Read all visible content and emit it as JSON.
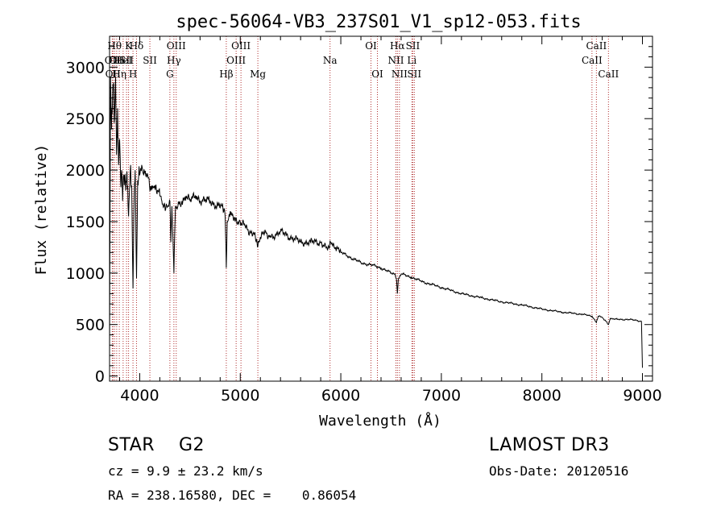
{
  "chart_data": {
    "type": "line",
    "title": "spec-56064-VB3_237S01_V1_sp12-053.fits",
    "xlabel": "Wavelength (Å)",
    "ylabel": "Flux (relative)",
    "xlim": [
      3700,
      9100
    ],
    "ylim": [
      -50,
      3300
    ],
    "xticks": [
      4000,
      5000,
      6000,
      7000,
      8000,
      9000
    ],
    "yticks": [
      0,
      500,
      1000,
      1500,
      2000,
      2500,
      3000
    ],
    "series": [
      {
        "name": "spectrum",
        "x": [
          3700,
          3710,
          3720,
          3730,
          3740,
          3750,
          3760,
          3770,
          3780,
          3790,
          3800,
          3810,
          3820,
          3830,
          3840,
          3850,
          3860,
          3870,
          3880,
          3889,
          3900,
          3910,
          3920,
          3933,
          3945,
          3955,
          3968,
          3980,
          3990,
          4000,
          4020,
          4040,
          4060,
          4080,
          4101,
          4120,
          4150,
          4180,
          4200,
          4220,
          4250,
          4280,
          4300,
          4310,
          4320,
          4340,
          4355,
          4380,
          4420,
          4460,
          4500,
          4560,
          4620,
          4700,
          4780,
          4820,
          4850,
          4861,
          4870,
          4900,
          4950,
          5000,
          5050,
          5100,
          5150,
          5172,
          5183,
          5200,
          5250,
          5300,
          5400,
          5500,
          5600,
          5700,
          5800,
          5889,
          5896,
          5950,
          6000,
          6100,
          6200,
          6300,
          6400,
          6500,
          6540,
          6555,
          6563,
          6572,
          6600,
          6700,
          6800,
          7000,
          7200,
          7400,
          7600,
          7800,
          8000,
          8200,
          8400,
          8500,
          8542,
          8560,
          8600,
          8662,
          8680,
          8750,
          8850,
          8950,
          8990,
          9000
        ],
        "values": [
          200,
          2900,
          2400,
          2700,
          2850,
          2500,
          2900,
          2150,
          2600,
          2050,
          2300,
          1900,
          2000,
          1700,
          1950,
          1950,
          1800,
          1950,
          1850,
          1550,
          1850,
          2050,
          1850,
          850,
          1750,
          2000,
          950,
          1900,
          1950,
          1950,
          2050,
          1950,
          1950,
          1950,
          1800,
          1850,
          1850,
          1800,
          1750,
          1700,
          1650,
          1650,
          1700,
          1300,
          1650,
          1000,
          1650,
          1650,
          1700,
          1750,
          1700,
          1750,
          1700,
          1700,
          1650,
          1650,
          1550,
          1050,
          1500,
          1600,
          1500,
          1500,
          1450,
          1400,
          1350,
          1250,
          1300,
          1350,
          1400,
          1350,
          1400,
          1350,
          1300,
          1300,
          1300,
          1250,
          1300,
          1250,
          1200,
          1150,
          1100,
          1080,
          1050,
          1000,
          990,
          930,
          800,
          940,
          990,
          960,
          920,
          860,
          800,
          760,
          720,
          690,
          650,
          620,
          600,
          580,
          520,
          580,
          570,
          500,
          560,
          550,
          550,
          540,
          530,
          80
        ]
      }
    ],
    "lines": [
      {
        "x": 3727,
        "row": 2,
        "label": "OII"
      },
      {
        "x": 3734,
        "row": 3,
        "label": "OII"
      },
      {
        "x": 3750,
        "row": 1,
        "label": "Hθ"
      },
      {
        "x": 3771,
        "row": 2,
        "label": "OII"
      },
      {
        "x": 3797,
        "row": 3,
        "label": "Hη"
      },
      {
        "x": 3835,
        "row": 2,
        "label": "HeI"
      },
      {
        "x": 3869,
        "row": 2,
        "label": "SII"
      },
      {
        "x": 3889,
        "row": 1,
        "label": "K"
      },
      {
        "x": 3933,
        "row": 3,
        "label": "H"
      },
      {
        "x": 3968,
        "row": 1,
        "label": "Hδ"
      },
      {
        "x": 4101,
        "row": 2,
        "label": "SII"
      },
      {
        "x": 4300,
        "row": 3,
        "label": "G"
      },
      {
        "x": 4340,
        "row": 2,
        "label": "Hγ"
      },
      {
        "x": 4363,
        "row": 1,
        "label": "OIII"
      },
      {
        "x": 4861,
        "row": 3,
        "label": "Hβ"
      },
      {
        "x": 4959,
        "row": 2,
        "label": "OIII"
      },
      {
        "x": 5007,
        "row": 1,
        "label": "OIII"
      },
      {
        "x": 5175,
        "row": 3,
        "label": "Mg"
      },
      {
        "x": 5893,
        "row": 2,
        "label": "Na"
      },
      {
        "x": 6300,
        "row": 1,
        "label": "OI"
      },
      {
        "x": 6364,
        "row": 3,
        "label": "OI"
      },
      {
        "x": 6548,
        "row": 2,
        "label": "NII"
      },
      {
        "x": 6563,
        "row": 1,
        "label": "Hα"
      },
      {
        "x": 6583,
        "row": 3,
        "label": "NII"
      },
      {
        "x": 6707,
        "row": 2,
        "label": "Li"
      },
      {
        "x": 6716,
        "row": 1,
        "label": "SII"
      },
      {
        "x": 6731,
        "row": 3,
        "label": "SII"
      },
      {
        "x": 8498,
        "row": 2,
        "label": "CaII"
      },
      {
        "x": 8542,
        "row": 1,
        "label": "CaII"
      },
      {
        "x": 8662,
        "row": 3,
        "label": "CaII"
      }
    ]
  },
  "info": {
    "object": "STAR    G2",
    "survey": "LAMOST DR3",
    "cz": "cz = 9.9 ± 23.2 km/s",
    "obs_date": "Obs-Date: 20120516",
    "radec": "RA = 238.16580, DEC =    0.86054"
  },
  "colors": {
    "line_marker": "#b03030",
    "spectrum": "#000000"
  }
}
